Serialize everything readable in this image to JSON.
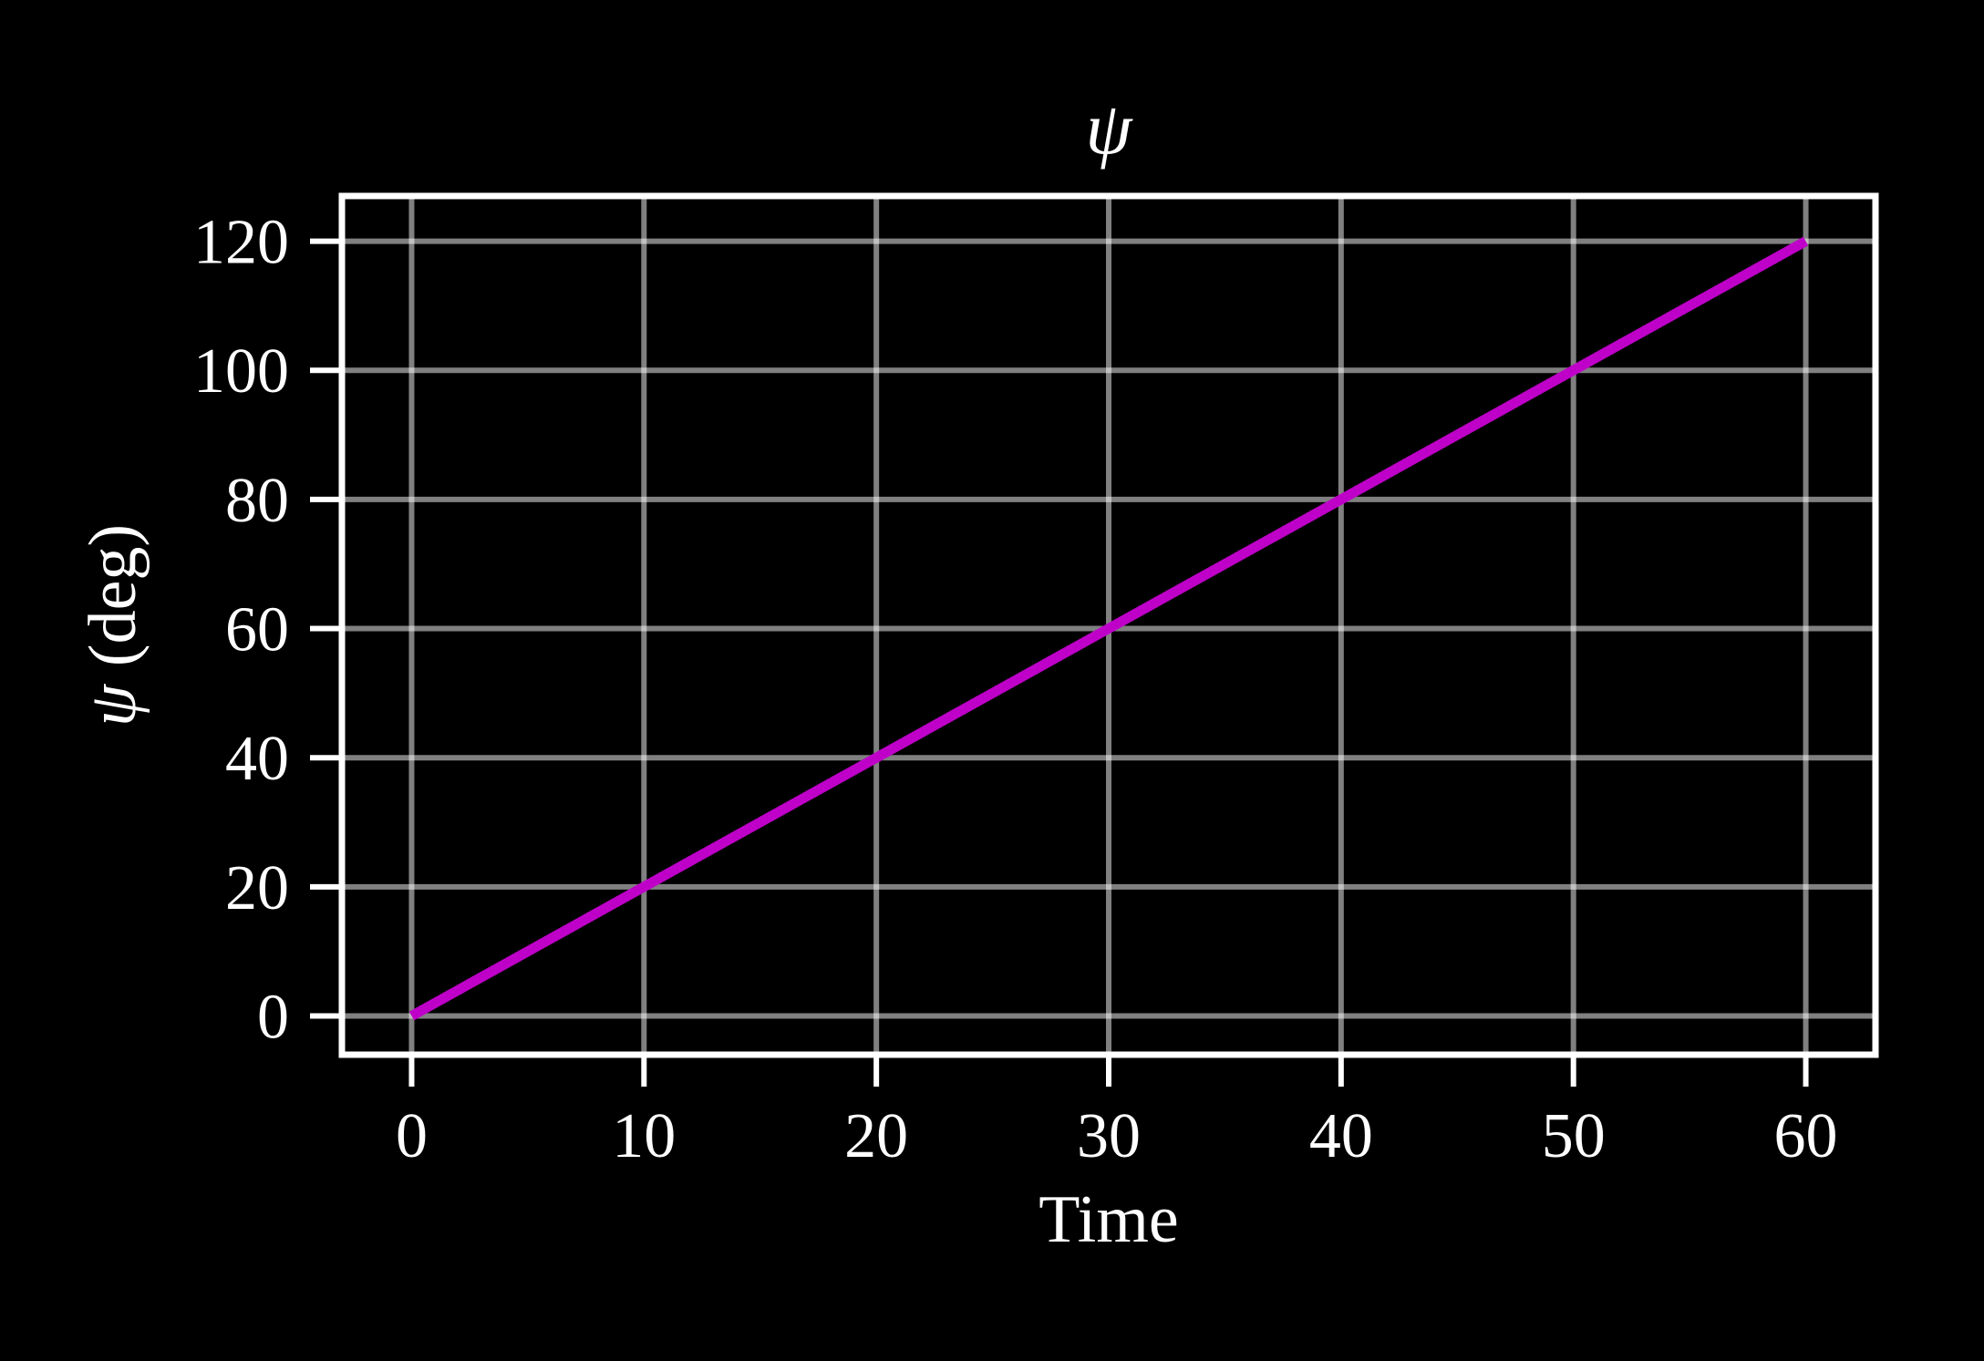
{
  "chart_data": {
    "type": "line",
    "title": "ψ",
    "xlabel": "Time",
    "ylabel": "ψ (deg)",
    "ylabel_symbol": "ψ",
    "ylabel_unit": "(deg)",
    "x": [
      0,
      10,
      20,
      30,
      40,
      50,
      60
    ],
    "series": [
      {
        "name": "psi",
        "values": [
          0,
          20,
          40,
          60,
          80,
          100,
          120
        ]
      }
    ],
    "xticks": [
      0,
      10,
      20,
      30,
      40,
      50,
      60
    ],
    "yticks": [
      0,
      20,
      40,
      60,
      80,
      100,
      120
    ],
    "xlim": [
      -3,
      63
    ],
    "ylim": [
      -6,
      127
    ],
    "grid": true,
    "legend": "none",
    "colors": {
      "background": "#000000",
      "frame": "#FFFFFF",
      "grid": "#FFFFFF",
      "grid_opacity": 0.5,
      "line": "#BE00C8",
      "text": "#FFFFFF"
    }
  }
}
